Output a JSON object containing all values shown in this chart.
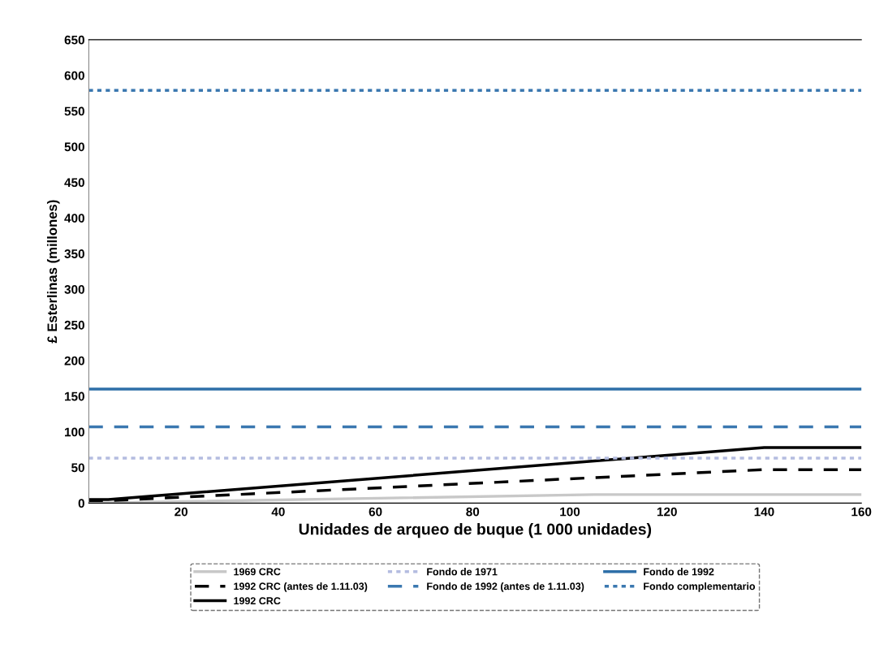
{
  "chart_data": {
    "type": "line",
    "xlabel": "Unidades de arqueo de buque (1 000 unidades)",
    "ylabel": "£ Esterlinas (millones)",
    "xlim": [
      1,
      160
    ],
    "xticks": [
      20,
      40,
      60,
      80,
      100,
      120,
      140,
      160
    ],
    "ylim": [
      0,
      650
    ],
    "yticks": [
      0,
      50,
      100,
      150,
      200,
      250,
      300,
      350,
      400,
      450,
      500,
      550,
      600,
      650
    ],
    "grid": false,
    "legend": "bottom",
    "marker": "none",
    "series": [
      {
        "name": "1969 CRC",
        "color": "#c8c8c8",
        "line_style": "solid",
        "x": [
          1,
          105,
          160
        ],
        "values": [
          0,
          12,
          12
        ]
      },
      {
        "name": "1992 CRC (antes de 1.11.03)",
        "color": "#000000",
        "line_style": "dashed",
        "x": [
          1,
          5,
          140,
          160
        ],
        "values": [
          3.5,
          3.5,
          47,
          47
        ]
      },
      {
        "name": "1992 CRC",
        "color": "#000000",
        "line_style": "solid",
        "x": [
          1,
          5,
          140,
          160
        ],
        "values": [
          5,
          5,
          78,
          78
        ]
      },
      {
        "name": "Fondo de 1971",
        "color": "#b4bce0",
        "line_style": "dotted",
        "x": [
          1,
          160
        ],
        "values": [
          63,
          63
        ]
      },
      {
        "name": "Fondo de 1992 (antes de 1.11.03)",
        "color": "#3b78b0",
        "line_style": "dashed",
        "x": [
          1,
          160
        ],
        "values": [
          107,
          107
        ]
      },
      {
        "name": "Fondo de 1992",
        "color": "#2e6fa8",
        "line_style": "solid",
        "x": [
          1,
          160
        ],
        "values": [
          160,
          160
        ]
      },
      {
        "name": "Fondo complementario",
        "color": "#3b78b0",
        "line_style": "dotted",
        "x": [
          1,
          160
        ],
        "values": [
          579,
          579
        ]
      }
    ]
  }
}
